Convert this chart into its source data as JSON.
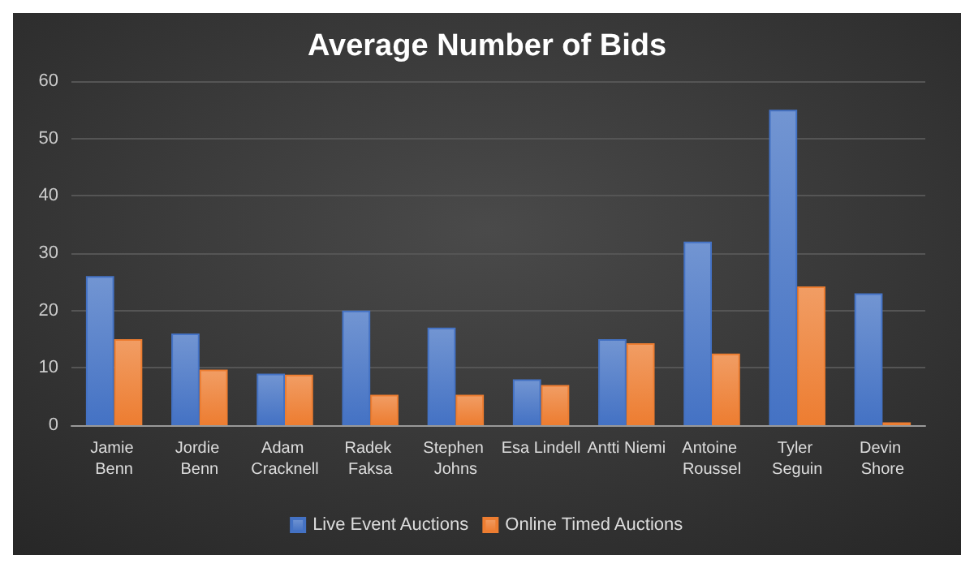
{
  "chart_data": {
    "type": "bar",
    "title": "Average Number of Bids",
    "categories": [
      "Jamie Benn",
      "Jordie Benn",
      "Adam Cracknell",
      "Radek Faksa",
      "Stephen Johns",
      "Esa Lindell",
      "Antti Niemi",
      "Antoine Roussel",
      "Tyler Seguin",
      "Devin Shore"
    ],
    "series": [
      {
        "name": "Live Event Auctions",
        "color": "#4472c4",
        "values": [
          26,
          16,
          9,
          20,
          17,
          8,
          15,
          32,
          55,
          23
        ]
      },
      {
        "name": "Online Timed Auctions",
        "color": "#ed7d31",
        "values": [
          15,
          9.7,
          8.8,
          5.3,
          5.3,
          7,
          14.3,
          12.5,
          24.2,
          0.5
        ]
      }
    ],
    "ylim": [
      0,
      60
    ],
    "yticks": [
      0,
      10,
      20,
      30,
      40,
      50,
      60
    ],
    "grid": "y",
    "legend": "bottom"
  }
}
